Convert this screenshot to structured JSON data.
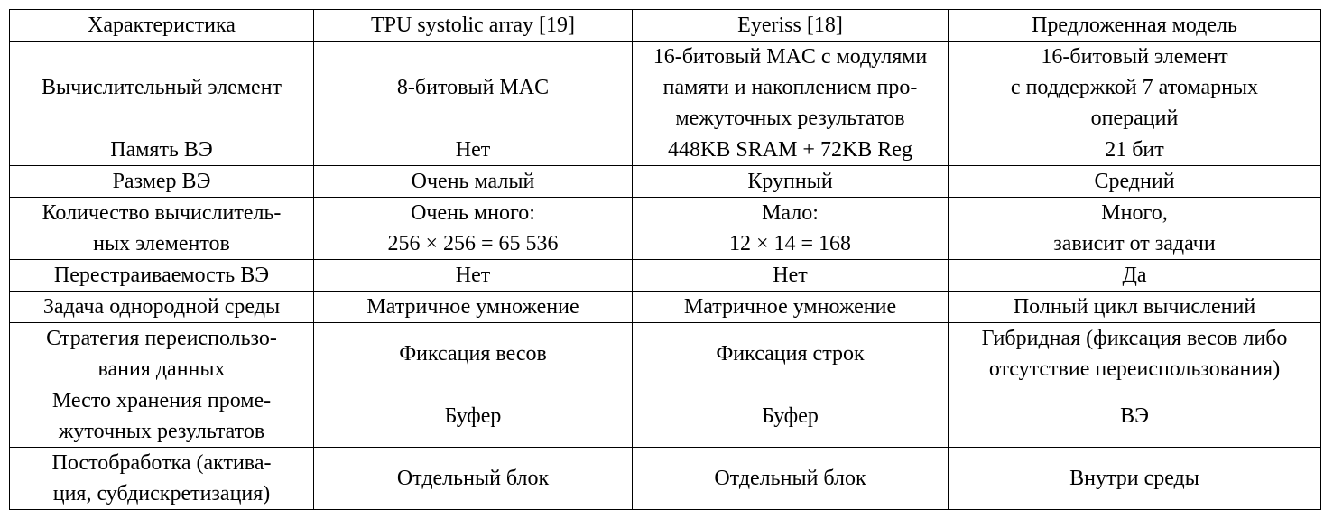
{
  "table": {
    "header": [
      "Характеристика",
      "TPU systolic array [19]",
      "Eyeriss [18]",
      "Предложенная модель"
    ],
    "rows": [
      [
        "Вычислительный элемент",
        "8-битовый MAC",
        "16-битовый MAC с модулями\nпамяти и накоплением про-\nмежуточных результатов",
        "16-битовый элемент\nс поддержкой 7 атомарных\nопераций"
      ],
      [
        "Память ВЭ",
        "Нет",
        "448KB SRAM + 72KB Reg",
        "21 бит"
      ],
      [
        "Размер ВЭ",
        "Очень малый",
        "Крупный",
        "Средний"
      ],
      [
        "Количество вычислитель-\nных элементов",
        "Очень много:\n256 × 256 = 65 536",
        "Мало:\n12 × 14 = 168",
        "Много,\nзависит от задачи"
      ],
      [
        "Перестраиваемость ВЭ",
        "Нет",
        "Нет",
        "Да"
      ],
      [
        "Задача однородной среды",
        "Матричное умножение",
        "Матричное умножение",
        "Полный цикл вычислений"
      ],
      [
        "Стратегия переиспользо-\nвания данных",
        "Фиксация весов",
        "Фиксация строк",
        "Гибридная (фиксация весов либо\nотсутствие переиспользования)"
      ],
      [
        "Место хранения проме-\nжуточных результатов",
        "Буфер",
        "Буфер",
        "ВЭ"
      ],
      [
        "Постобработка (актива-\nция, субдискретизация)",
        "Отдельный блок",
        "Отдельный блок",
        "Внутри среды"
      ]
    ]
  }
}
